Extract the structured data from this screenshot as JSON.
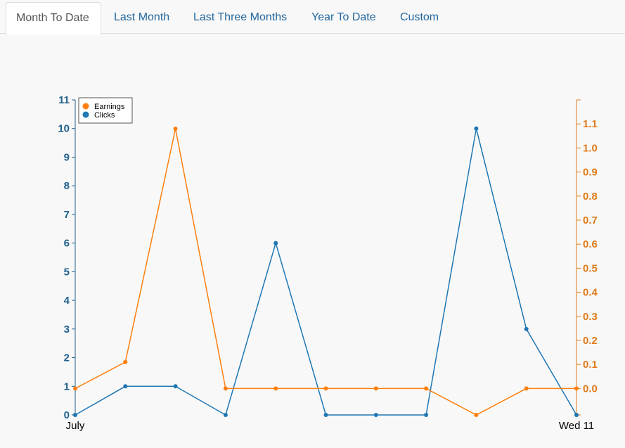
{
  "tabs": [
    {
      "label": "Month To Date",
      "active": true
    },
    {
      "label": "Last Month",
      "active": false
    },
    {
      "label": "Last Three Months",
      "active": false
    },
    {
      "label": "Year To Date",
      "active": false
    },
    {
      "label": "Custom",
      "active": false
    }
  ],
  "colors": {
    "clicks": "#1f77b4",
    "earnings": "#ff7f0e",
    "left_axis": "#1f5f8b",
    "right_axis": "#e07b1a"
  },
  "chart_data": {
    "type": "line",
    "x_tick_labels": [
      "July",
      "Wed 11"
    ],
    "x_count": 11,
    "legend": [
      "Earnings",
      "Clicks"
    ],
    "series": [
      {
        "name": "Clicks",
        "axis": "left",
        "values": [
          0,
          1,
          1,
          0,
          6,
          0,
          0,
          0,
          10,
          3,
          0
        ]
      },
      {
        "name": "Earnings",
        "axis": "right",
        "values": [
          0.0,
          0.11,
          1.08,
          0.0,
          0.0,
          0.0,
          0.0,
          0.0,
          -0.11,
          0.0,
          0.0
        ]
      }
    ],
    "y_left": {
      "min": 0,
      "max": 11,
      "ticks": [
        0,
        1,
        2,
        3,
        4,
        5,
        6,
        7,
        8,
        9,
        10,
        11
      ]
    },
    "y_right": {
      "min": -0.11,
      "max": 1.2,
      "ticks": [
        "0.0",
        "0.1",
        "0.2",
        "0.3",
        "0.4",
        "0.5",
        "0.6",
        "0.7",
        "0.8",
        "0.9",
        "1.0",
        "1.1"
      ]
    },
    "grid": false,
    "legend_position": "top-left"
  }
}
